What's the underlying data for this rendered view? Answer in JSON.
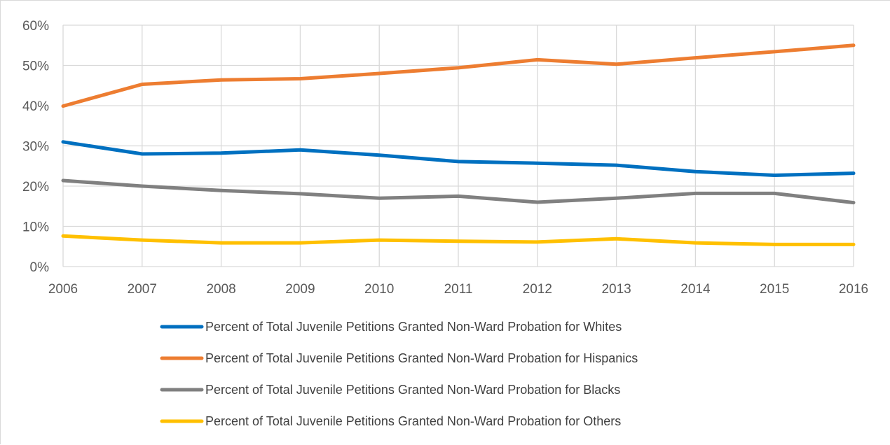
{
  "chart_data": {
    "type": "line",
    "title": "",
    "xlabel": "",
    "ylabel": "",
    "x": [
      "2006",
      "2007",
      "2008",
      "2009",
      "2010",
      "2011",
      "2012",
      "2013",
      "2014",
      "2015",
      "2016"
    ],
    "ylim": [
      0,
      60
    ],
    "y_ticks": [
      "0%",
      "10%",
      "20%",
      "30%",
      "40%",
      "50%",
      "60%"
    ],
    "y_tick_values": [
      0,
      10,
      20,
      30,
      40,
      50,
      60
    ],
    "grid": true,
    "legend_position": "bottom",
    "series": [
      {
        "name": "Percent of Total Juvenile Petitions Granted Non-Ward Probation for Whites",
        "color": "#0070c0",
        "values": [
          31.0,
          28.0,
          28.2,
          29.0,
          27.7,
          26.1,
          25.7,
          25.2,
          23.6,
          22.7,
          23.2
        ]
      },
      {
        "name": "Percent of Total Juvenile Petitions Granted Non-Ward Probation for Hispanics",
        "color": "#ed7d31",
        "values": [
          39.9,
          45.3,
          46.4,
          46.7,
          48.0,
          49.4,
          51.4,
          50.3,
          51.9,
          53.4,
          55.0
        ]
      },
      {
        "name": "Percent of Total Juvenile Petitions Granted Non-Ward Probation for Blacks",
        "color": "#808080",
        "values": [
          21.4,
          20.0,
          18.9,
          18.1,
          17.0,
          17.5,
          16.0,
          17.0,
          18.2,
          18.2,
          15.9
        ]
      },
      {
        "name": "Percent of Total Juvenile Petitions Granted Non-Ward Probation for Others",
        "color": "#ffc000",
        "values": [
          7.6,
          6.6,
          5.9,
          5.9,
          6.6,
          6.3,
          6.1,
          6.9,
          5.9,
          5.5,
          5.5
        ]
      }
    ]
  }
}
